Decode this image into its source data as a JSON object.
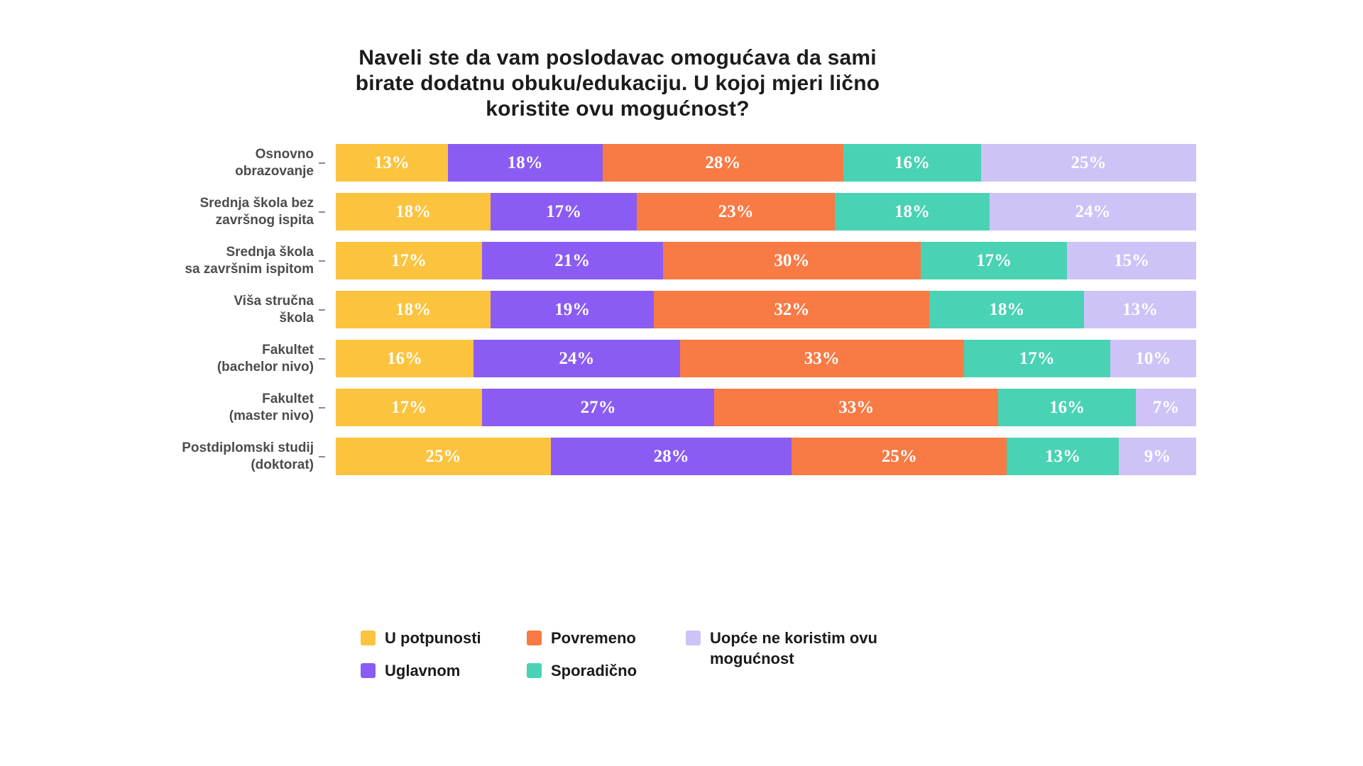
{
  "title": {
    "lines": [
      "Naveli ste da vam poslodavac omogućava da sami",
      "birate dodatnu obuku/edukaciju. U kojoj mjeri lično",
      "koristite ovu mogućnost?"
    ]
  },
  "colors": {
    "u_potpunosti": "#FCC33E",
    "uglavnom": "#8B5CF4",
    "povremeno": "#F87A45",
    "sporadicno": "#4AD2B4",
    "uopce_ne_koristim": "#CFC2F7",
    "title_text": "#1C1C1E",
    "category_text": "#4C4C4E",
    "bar_value_text": "#FFFFFF",
    "tick": "#8A8A8A",
    "background": "#FFFFFF"
  },
  "chart_data": {
    "type": "bar",
    "orientation": "horizontal",
    "stacked": true,
    "title": "Naveli ste da vam poslodavac omogućava da sami birate dodatnu obuku/edukaciju. U kojoj mjeri lično koristite ovu mogućnost?",
    "categories": [
      [
        "Osnovno",
        "obrazovanje"
      ],
      [
        "Srednja škola bez",
        "završnog ispita"
      ],
      [
        "Srednja škola",
        "sa završnim ispitom"
      ],
      [
        "Viša stručna",
        "škola"
      ],
      [
        "Fakultet",
        "(bachelor nivo)"
      ],
      [
        "Fakultet",
        "(master nivo)"
      ],
      [
        "Postdiplomski studij",
        "(doktorat)"
      ]
    ],
    "series": [
      {
        "name": "U potpunosti",
        "color": "#FCC33E",
        "values": [
          13,
          18,
          17,
          18,
          16,
          17,
          25
        ]
      },
      {
        "name": "Uglavnom",
        "color": "#8B5CF4",
        "values": [
          18,
          17,
          21,
          19,
          24,
          27,
          28
        ]
      },
      {
        "name": "Povremeno",
        "color": "#F87A45",
        "values": [
          28,
          23,
          30,
          32,
          33,
          33,
          25
        ]
      },
      {
        "name": "Sporadično",
        "color": "#4AD2B4",
        "values": [
          16,
          18,
          17,
          18,
          17,
          16,
          13
        ]
      },
      {
        "name": "Uopće ne koristim ovu mogućnost",
        "color": "#CFC2F7",
        "values": [
          25,
          24,
          15,
          13,
          10,
          7,
          9
        ]
      }
    ],
    "value_suffix": "%",
    "xlim": [
      0,
      100
    ],
    "grid": false,
    "legend_position": "bottom"
  },
  "legend": {
    "columns": [
      [
        {
          "label": "U potpunosti",
          "color": "#FCC33E"
        },
        {
          "label": "Uglavnom",
          "color": "#8B5CF4"
        }
      ],
      [
        {
          "label": "Povremeno",
          "color": "#F87A45"
        },
        {
          "label": "Sporadično",
          "color": "#4AD2B4"
        }
      ],
      [
        {
          "label": "Uopće ne koristim ovu mogućnost",
          "color": "#CFC2F7"
        }
      ]
    ]
  }
}
